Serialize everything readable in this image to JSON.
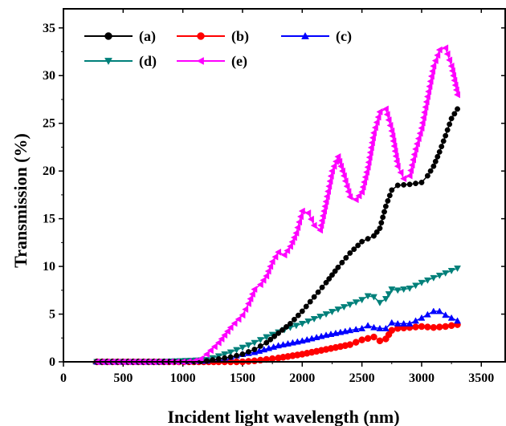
{
  "chart_data": {
    "type": "line",
    "title": "",
    "xlabel": "Incident light wavelength (nm)",
    "ylabel": "Transmission (%)",
    "xlim": [
      0,
      3700
    ],
    "ylim": [
      0,
      37
    ],
    "xticks": [
      0,
      500,
      1000,
      1500,
      2000,
      2500,
      3000,
      3500
    ],
    "xtick_labels": [
      "0",
      "500",
      "1000",
      "1500",
      "2000",
      "2500",
      "3000",
      "3500"
    ],
    "yticks": [
      0,
      5,
      10,
      15,
      20,
      25,
      30,
      35
    ],
    "ytick_labels": [
      "0",
      "5",
      "10",
      "15",
      "20",
      "25",
      "30",
      "35"
    ],
    "grid": false,
    "legend_position": "top-left",
    "series": [
      {
        "name": "(a)",
        "color": "#000000",
        "marker": "circle",
        "x": [
          280,
          500,
          800,
          1100,
          1200,
          1300,
          1400,
          1500,
          1600,
          1700,
          1800,
          1900,
          2000,
          2100,
          2200,
          2300,
          2400,
          2500,
          2600,
          2650,
          2700,
          2750,
          2800,
          2900,
          3000,
          3050,
          3100,
          3150,
          3200,
          3250,
          3300
        ],
        "y": [
          0,
          0,
          0,
          0,
          0.1,
          0.3,
          0.5,
          0.8,
          1.3,
          2.0,
          3.0,
          4.0,
          5.3,
          6.8,
          8.3,
          9.9,
          11.4,
          12.6,
          13.2,
          14.0,
          16.3,
          18.0,
          18.5,
          18.6,
          18.8,
          19.5,
          20.5,
          22.0,
          23.7,
          25.5,
          26.5
        ]
      },
      {
        "name": "(b)",
        "color": "#ff0000",
        "marker": "circle",
        "x": [
          280,
          800,
          1300,
          1500,
          1600,
          1800,
          2000,
          2200,
          2400,
          2500,
          2600,
          2650,
          2700,
          2750,
          2800,
          2900,
          3000,
          3100,
          3200,
          3300
        ],
        "y": [
          0,
          0,
          0,
          0,
          0.1,
          0.4,
          0.8,
          1.3,
          1.8,
          2.3,
          2.6,
          2.2,
          2.4,
          3.3,
          3.5,
          3.6,
          3.7,
          3.6,
          3.7,
          3.9
        ]
      },
      {
        "name": "(c)",
        "color": "#0000ff",
        "marker": "triangle-up",
        "x": [
          280,
          800,
          1200,
          1300,
          1400,
          1500,
          1600,
          1800,
          2000,
          2200,
          2400,
          2500,
          2550,
          2600,
          2650,
          2700,
          2750,
          2800,
          2900,
          3000,
          3100,
          3150,
          3200,
          3300
        ],
        "y": [
          0,
          0,
          0.1,
          0.3,
          0.5,
          0.8,
          1.0,
          1.7,
          2.2,
          2.8,
          3.3,
          3.5,
          3.8,
          3.6,
          3.5,
          3.5,
          4.1,
          4.0,
          4.0,
          4.6,
          5.3,
          5.3,
          4.9,
          4.3
        ]
      },
      {
        "name": "(d)",
        "color": "#00807a",
        "marker": "triangle-down",
        "x": [
          280,
          800,
          1200,
          1300,
          1400,
          1500,
          1600,
          1700,
          1800,
          1900,
          2000,
          2100,
          2200,
          2300,
          2400,
          2500,
          2550,
          2600,
          2650,
          2700,
          2750,
          2800,
          2900,
          3000,
          3100,
          3200,
          3300
        ],
        "y": [
          0,
          0,
          0.2,
          0.6,
          1.0,
          1.5,
          2.0,
          2.6,
          3.1,
          3.6,
          4.0,
          4.5,
          5.0,
          5.5,
          6.0,
          6.5,
          6.9,
          6.8,
          6.2,
          6.6,
          7.6,
          7.5,
          7.7,
          8.3,
          8.8,
          9.3,
          9.8
        ]
      },
      {
        "name": "(e)",
        "color": "#ff00ff",
        "marker": "triangle-left",
        "x": [
          280,
          500,
          800,
          1000,
          1100,
          1150,
          1200,
          1300,
          1400,
          1500,
          1550,
          1600,
          1650,
          1700,
          1750,
          1800,
          1850,
          1900,
          1950,
          2000,
          2050,
          2100,
          2150,
          2200,
          2250,
          2300,
          2350,
          2400,
          2450,
          2500,
          2550,
          2600,
          2650,
          2700,
          2750,
          2800,
          2850,
          2900,
          2950,
          3000,
          3050,
          3100,
          3150,
          3200,
          3250,
          3300
        ],
        "y": [
          0,
          0,
          0,
          0,
          0.1,
          0.3,
          0.8,
          2.0,
          3.6,
          4.9,
          6.1,
          7.6,
          8.1,
          9.0,
          10.5,
          11.5,
          11.2,
          12.1,
          13.5,
          15.8,
          15.6,
          14.3,
          13.8,
          16.8,
          20.0,
          21.5,
          19.5,
          17.3,
          17.0,
          17.8,
          20.4,
          24.0,
          26.2,
          26.5,
          24.2,
          20.5,
          19.2,
          19.5,
          22.3,
          24.5,
          27.8,
          31.0,
          32.7,
          32.9,
          31.0,
          28.0
        ]
      }
    ]
  }
}
